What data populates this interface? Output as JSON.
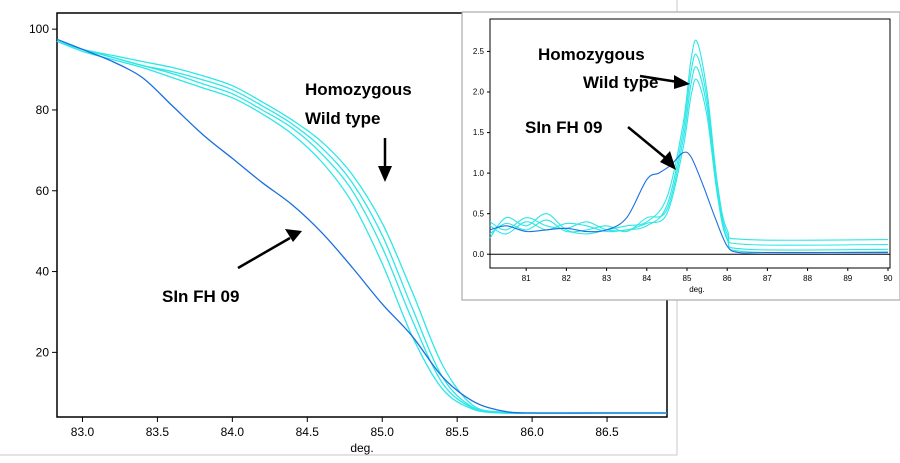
{
  "chart_data": [
    {
      "type": "line",
      "xlabel": "deg.",
      "xlim": [
        82.83,
        86.9
      ],
      "ylim": [
        4,
        104
      ],
      "xticks": [
        "83.0",
        "83.5",
        "84.0",
        "84.5",
        "85.0",
        "85.5",
        "86.0",
        "86.5"
      ],
      "yticks": [
        "20",
        "40",
        "60",
        "80",
        "100"
      ],
      "grid": false,
      "colors": {
        "mutant": "#1a6fe0",
        "wildtype": "#2ee6e6"
      },
      "series": [
        {
          "group": "mutant",
          "x": [
            82.83,
            83.0,
            83.2,
            83.4,
            83.6,
            83.8,
            84.0,
            84.2,
            84.4,
            84.6,
            84.8,
            85.0,
            85.2,
            85.4,
            85.6,
            85.8,
            86.0,
            86.5,
            86.9
          ],
          "y": [
            97.5,
            95,
            92,
            88,
            81,
            74,
            68,
            62,
            56.5,
            49.5,
            41,
            32,
            24,
            14,
            8,
            5.5,
            5,
            5,
            5
          ]
        },
        {
          "group": "wildtype",
          "x": [
            82.83,
            83.0,
            83.2,
            83.4,
            83.6,
            83.8,
            84.0,
            84.2,
            84.4,
            84.6,
            84.8,
            85.0,
            85.2,
            85.4,
            85.6,
            85.8,
            86.0,
            86.5,
            86.9
          ],
          "y": [
            97,
            95,
            93.5,
            92,
            90.5,
            88.5,
            86,
            82,
            77.5,
            72,
            64,
            52,
            35,
            17,
            7,
            5.2,
            5,
            5,
            5
          ]
        },
        {
          "group": "wildtype",
          "x": [
            82.83,
            83.0,
            83.2,
            83.4,
            83.6,
            83.8,
            84.0,
            84.2,
            84.4,
            84.6,
            84.8,
            85.0,
            85.2,
            85.4,
            85.6,
            85.8,
            86.0,
            86.5,
            86.9
          ],
          "y": [
            97,
            95,
            93,
            91,
            89.5,
            87.5,
            85,
            81,
            76.5,
            70.5,
            62,
            49,
            31,
            14,
            6.5,
            5.1,
            5,
            5,
            5
          ]
        },
        {
          "group": "wildtype",
          "x": [
            82.83,
            83.0,
            83.2,
            83.4,
            83.6,
            83.8,
            84.0,
            84.2,
            84.4,
            84.6,
            84.8,
            85.0,
            85.2,
            85.4,
            85.6,
            85.8,
            86.0,
            86.5,
            86.9
          ],
          "y": [
            97,
            95,
            93,
            91,
            89,
            86.5,
            84,
            80,
            75.5,
            69,
            60,
            46,
            28,
            12.5,
            6.3,
            5,
            5,
            5,
            5
          ]
        },
        {
          "group": "wildtype",
          "x": [
            82.83,
            83.0,
            83.2,
            83.4,
            83.6,
            83.8,
            84.0,
            84.2,
            84.4,
            84.6,
            84.8,
            85.0,
            85.2,
            85.4,
            85.6,
            85.8,
            86.0,
            86.5,
            86.9
          ],
          "y": [
            97,
            94.5,
            92.5,
            90.5,
            88,
            85.5,
            83,
            79,
            74,
            67,
            57,
            42,
            24,
            11,
            6,
            5,
            5,
            5,
            5
          ]
        }
      ],
      "annotations": [
        {
          "lines": [
            "Homozygous",
            "Wild type"
          ]
        },
        {
          "lines": [
            "SIn FH 09"
          ]
        }
      ]
    },
    {
      "type": "line",
      "xlabel": "deg.",
      "xlim": [
        80.1,
        90.05
      ],
      "ylim": [
        -0.17,
        2.9
      ],
      "xticks": [
        "81",
        "82",
        "83",
        "84",
        "85",
        "86",
        "87",
        "88",
        "89",
        "90"
      ],
      "yticks": [
        "0.0",
        "0.5",
        "1.0",
        "1.5",
        "2.0",
        "2.5"
      ],
      "grid": false,
      "colors": {
        "mutant": "#1a6fe0",
        "wildtype": "#2ee6e6"
      },
      "series": [
        {
          "group": "mutant",
          "x": [
            80.1,
            80.5,
            81,
            81.5,
            82,
            82.5,
            83,
            83.5,
            84,
            84.3,
            84.6,
            84.9,
            85.1,
            85.4,
            85.7,
            86,
            86.3,
            87,
            90
          ],
          "y": [
            0.3,
            0.35,
            0.28,
            0.3,
            0.32,
            0.28,
            0.3,
            0.45,
            0.92,
            1.0,
            1.1,
            1.25,
            1.2,
            0.85,
            0.45,
            0.1,
            0.02,
            0.02,
            0.02
          ]
        },
        {
          "group": "wildtype",
          "x": [
            80.1,
            80.5,
            81,
            81.5,
            82,
            82.5,
            83,
            83.5,
            84,
            84.5,
            84.9,
            85.1,
            85.25,
            85.5,
            85.75,
            86,
            86.5,
            90
          ],
          "y": [
            0.2,
            0.45,
            0.35,
            0.5,
            0.3,
            0.25,
            0.3,
            0.35,
            0.4,
            0.7,
            1.6,
            2.4,
            2.62,
            2.0,
            0.9,
            0.3,
            0.18,
            0.18
          ]
        },
        {
          "group": "wildtype",
          "x": [
            80.1,
            80.5,
            81,
            81.5,
            82,
            82.5,
            83,
            83.5,
            84,
            84.5,
            84.9,
            85.1,
            85.25,
            85.5,
            85.75,
            86,
            86.5,
            90
          ],
          "y": [
            0.35,
            0.25,
            0.4,
            0.3,
            0.38,
            0.35,
            0.28,
            0.3,
            0.35,
            0.6,
            1.5,
            2.25,
            2.45,
            1.9,
            0.85,
            0.25,
            0.12,
            0.12
          ]
        },
        {
          "group": "wildtype",
          "x": [
            80.1,
            80.5,
            81,
            81.5,
            82,
            82.5,
            83,
            83.5,
            84,
            84.5,
            84.9,
            85.1,
            85.25,
            85.5,
            85.75,
            86,
            86.5,
            90
          ],
          "y": [
            0.25,
            0.38,
            0.3,
            0.42,
            0.28,
            0.3,
            0.35,
            0.28,
            0.45,
            0.55,
            1.4,
            2.1,
            2.3,
            1.8,
            0.8,
            0.2,
            0.06,
            0.06
          ]
        },
        {
          "group": "wildtype",
          "x": [
            80.1,
            80.5,
            81,
            81.5,
            82,
            82.5,
            83,
            83.5,
            84,
            84.5,
            84.9,
            85.1,
            85.25,
            85.5,
            85.75,
            86,
            86.5,
            90
          ],
          "y": [
            0.4,
            0.3,
            0.45,
            0.35,
            0.32,
            0.4,
            0.3,
            0.3,
            0.38,
            0.5,
            1.3,
            1.95,
            2.15,
            1.7,
            0.75,
            0.18,
            0.03,
            0.03
          ]
        }
      ],
      "annotations": [
        {
          "lines": [
            "Homozygous",
            "Wild type"
          ]
        },
        {
          "lines": [
            "SIn FH 09"
          ]
        }
      ]
    }
  ]
}
